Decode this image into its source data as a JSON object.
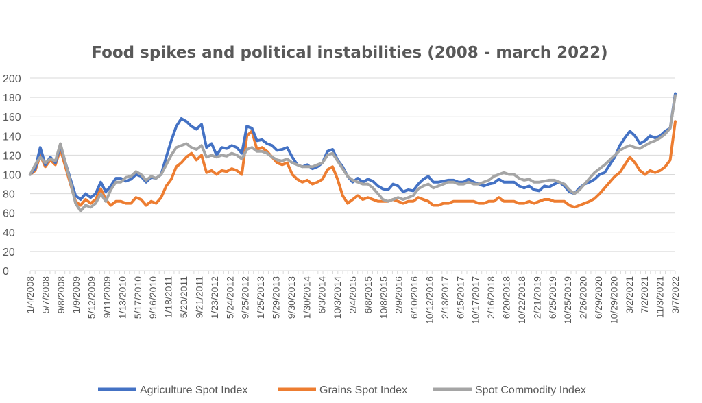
{
  "chart_data": {
    "type": "line",
    "title": "Food spikes and political instabilities (2008 - march 2022)",
    "xlabel": "",
    "ylabel": "",
    "ylim": [
      0,
      200
    ],
    "yticks": [
      0,
      20,
      40,
      60,
      80,
      100,
      120,
      140,
      160,
      180,
      200
    ],
    "grid": true,
    "legend_position": "bottom",
    "x_tick_labels": [
      "1/4/2008",
      "5/7/2008",
      "9/8/2008",
      "1/9/2009",
      "5/12/2009",
      "9/11/2009",
      "1/13/2010",
      "5/17/2010",
      "9/16/2010",
      "1/18/2011",
      "5/20/2011",
      "9/21/2011",
      "1/23/2012",
      "5/24/2012",
      "9/25/2012",
      "1/25/2013",
      "5/29/2013",
      "9/30/2013",
      "1/30/2014",
      "6/3/2014",
      "10/3/2014",
      "2/4/2015",
      "6/8/2015",
      "10/8/2015",
      "2/9/2016",
      "6/10/2016",
      "10/12/2016",
      "2/13/2017",
      "6/15/2017",
      "10/17/2017",
      "2/16/2018",
      "6/20/2018",
      "10/22/2018",
      "2/21/2019",
      "6/25/2019",
      "10/25/2019",
      "2/26/2020",
      "6/29/2020",
      "10/29/2020",
      "3/2/2021",
      "7/2/2021",
      "11/3/2021",
      "3/7/2022"
    ],
    "series": [
      {
        "name": "Agriculture Spot Index",
        "color": "#4472c4",
        "values": [
          100,
          106,
          128,
          110,
          118,
          112,
          130,
          112,
          95,
          78,
          74,
          80,
          76,
          80,
          92,
          82,
          88,
          96,
          96,
          93,
          95,
          100,
          98,
          92,
          97,
          96,
          100,
          118,
          135,
          150,
          158,
          155,
          150,
          147,
          152,
          128,
          132,
          120,
          128,
          127,
          130,
          128,
          122,
          150,
          148,
          135,
          136,
          132,
          130,
          125,
          126,
          128,
          118,
          110,
          108,
          110,
          106,
          108,
          112,
          124,
          126,
          115,
          108,
          98,
          92,
          96,
          92,
          95,
          93,
          88,
          85,
          84,
          90,
          88,
          82,
          84,
          83,
          90,
          95,
          98,
          92,
          92,
          93,
          94,
          94,
          92,
          92,
          95,
          92,
          90,
          88,
          90,
          91,
          95,
          92,
          92,
          92,
          88,
          86,
          88,
          84,
          83,
          88,
          87,
          90,
          92,
          88,
          82,
          80,
          86,
          90,
          92,
          95,
          100,
          102,
          110,
          118,
          130,
          138,
          145,
          140,
          132,
          135,
          140,
          138,
          140,
          145,
          148,
          184
        ]
      },
      {
        "name": "Grains Spot Index",
        "color": "#ed7d31",
        "values": [
          100,
          104,
          120,
          108,
          115,
          110,
          126,
          108,
          90,
          72,
          68,
          74,
          70,
          74,
          85,
          74,
          68,
          72,
          72,
          70,
          70,
          76,
          74,
          68,
          72,
          70,
          76,
          88,
          95,
          108,
          112,
          118,
          122,
          115,
          120,
          102,
          104,
          100,
          104,
          103,
          106,
          104,
          100,
          140,
          145,
          126,
          128,
          124,
          118,
          112,
          110,
          112,
          100,
          95,
          92,
          94,
          90,
          92,
          95,
          105,
          108,
          95,
          78,
          70,
          74,
          78,
          74,
          76,
          74,
          72,
          72,
          72,
          74,
          72,
          70,
          72,
          72,
          76,
          74,
          72,
          68,
          68,
          70,
          70,
          72,
          72,
          72,
          72,
          72,
          70,
          70,
          72,
          72,
          76,
          72,
          72,
          72,
          70,
          70,
          72,
          70,
          72,
          74,
          74,
          72,
          72,
          72,
          68,
          66,
          68,
          70,
          72,
          75,
          80,
          86,
          92,
          98,
          102,
          110,
          118,
          112,
          104,
          100,
          104,
          102,
          104,
          108,
          115,
          155
        ]
      },
      {
        "name": "Spot Commodity Index",
        "color": "#a5a5a5",
        "values": [
          100,
          110,
          118,
          112,
          116,
          114,
          132,
          112,
          92,
          70,
          62,
          68,
          66,
          70,
          80,
          72,
          84,
          92,
          92,
          97,
          98,
          103,
          100,
          94,
          98,
          96,
          100,
          110,
          120,
          128,
          130,
          132,
          128,
          126,
          130,
          118,
          120,
          118,
          120,
          119,
          122,
          120,
          116,
          126,
          128,
          124,
          124,
          122,
          118,
          115,
          114,
          116,
          112,
          110,
          108,
          108,
          108,
          110,
          112,
          120,
          122,
          114,
          106,
          98,
          94,
          92,
          90,
          90,
          86,
          80,
          74,
          72,
          74,
          76,
          74,
          76,
          78,
          85,
          88,
          90,
          86,
          88,
          90,
          92,
          92,
          90,
          90,
          92,
          90,
          90,
          92,
          94,
          98,
          100,
          102,
          100,
          100,
          96,
          94,
          95,
          92,
          92,
          93,
          94,
          94,
          92,
          90,
          84,
          80,
          84,
          90,
          96,
          102,
          106,
          110,
          115,
          120,
          125,
          128,
          130,
          128,
          127,
          130,
          133,
          135,
          138,
          142,
          148,
          182
        ]
      }
    ]
  }
}
